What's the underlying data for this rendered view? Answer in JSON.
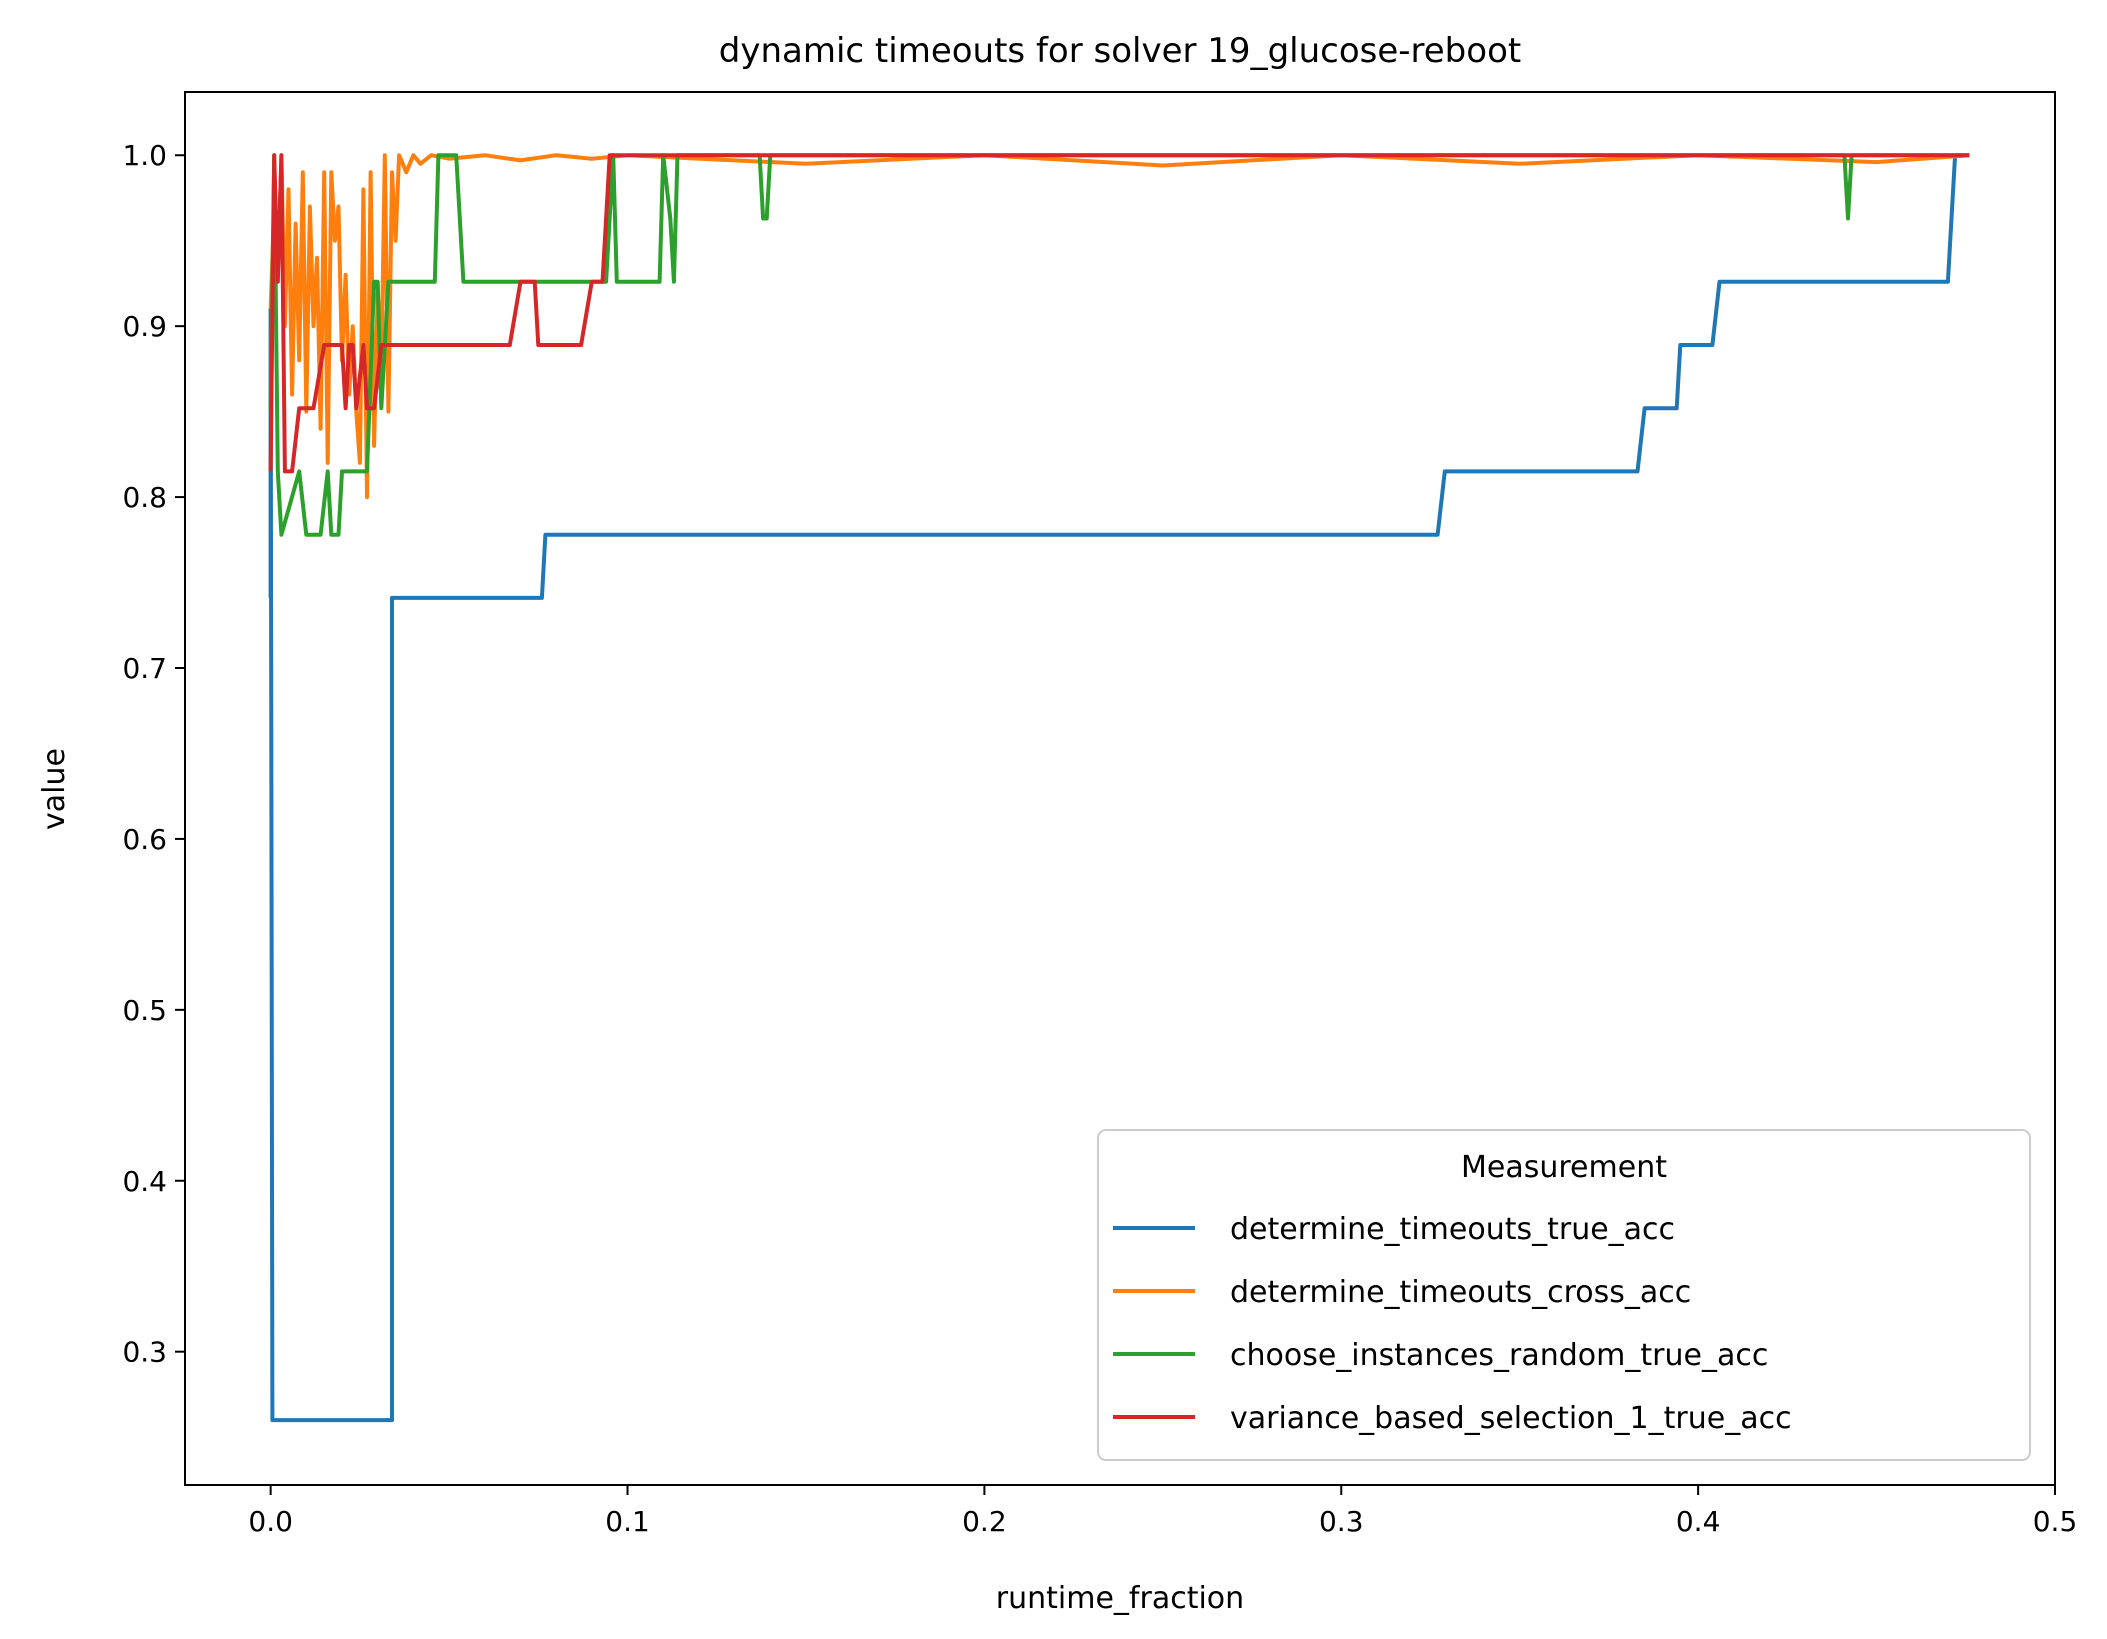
{
  "chart_data": {
    "type": "line",
    "title": "dynamic timeouts for solver 19_glucose-reboot",
    "xlabel": "runtime_fraction",
    "ylabel": "value",
    "xlim": [
      -0.024,
      0.5
    ],
    "ylim": [
      0.222,
      1.037
    ],
    "xticks": [
      0.0,
      0.1,
      0.2,
      0.3,
      0.4,
      0.5
    ],
    "xtick_labels": [
      "0.0",
      "0.1",
      "0.2",
      "0.3",
      "0.4",
      "0.5"
    ],
    "yticks": [
      0.3,
      0.4,
      0.5,
      0.6,
      0.7,
      0.8,
      0.9,
      1.0
    ],
    "ytick_labels": [
      "0.3",
      "0.4",
      "0.5",
      "0.6",
      "0.7",
      "0.8",
      "0.9",
      "1.0"
    ],
    "grid": false,
    "legend": {
      "title": "Measurement",
      "placement": "lower-right"
    },
    "series": [
      {
        "name": "determine_timeouts_true_acc",
        "color": "#1f77b4",
        "x": [
          0.0,
          0.0,
          0.0005,
          0.0005,
          0.033,
          0.034,
          0.034,
          0.076,
          0.077,
          0.327,
          0.329,
          0.383,
          0.385,
          0.394,
          0.395,
          0.404,
          0.406,
          0.47,
          0.472
        ],
        "y": [
          0.741,
          0.91,
          0.26,
          0.26,
          0.26,
          0.26,
          0.741,
          0.741,
          0.778,
          0.778,
          0.815,
          0.815,
          0.852,
          0.852,
          0.889,
          0.889,
          0.926,
          0.926,
          1.0
        ]
      },
      {
        "name": "determine_timeouts_cross_acc",
        "color": "#ff7f0e",
        "x": [
          0.0,
          0.001,
          0.002,
          0.003,
          0.004,
          0.005,
          0.006,
          0.007,
          0.008,
          0.009,
          0.01,
          0.011,
          0.012,
          0.013,
          0.014,
          0.015,
          0.016,
          0.017,
          0.018,
          0.019,
          0.02,
          0.021,
          0.022,
          0.023,
          0.024,
          0.025,
          0.026,
          0.027,
          0.028,
          0.029,
          0.03,
          0.031,
          0.032,
          0.033,
          0.034,
          0.035,
          0.036,
          0.038,
          0.04,
          0.042,
          0.045,
          0.05,
          0.06,
          0.07,
          0.08,
          0.09,
          0.1,
          0.15,
          0.2,
          0.25,
          0.3,
          0.35,
          0.4,
          0.45,
          0.476
        ],
        "y": [
          0.91,
          0.97,
          0.93,
          1.0,
          0.9,
          0.98,
          0.86,
          0.96,
          0.88,
          0.99,
          0.85,
          0.97,
          0.9,
          0.94,
          0.84,
          0.99,
          0.82,
          0.99,
          0.95,
          0.97,
          0.88,
          0.93,
          0.86,
          0.9,
          0.85,
          0.82,
          0.98,
          0.8,
          0.99,
          0.83,
          0.92,
          0.87,
          1.0,
          0.85,
          0.99,
          0.95,
          1.0,
          0.99,
          1.0,
          0.995,
          1.0,
          0.998,
          1.0,
          0.997,
          1.0,
          0.998,
          1.0,
          0.995,
          1.0,
          0.994,
          1.0,
          0.995,
          1.0,
          0.996,
          1.0
        ]
      },
      {
        "name": "choose_instances_random_true_acc",
        "color": "#2ca02c",
        "x": [
          0.0,
          0.001,
          0.002,
          0.003,
          0.008,
          0.01,
          0.011,
          0.014,
          0.016,
          0.017,
          0.018,
          0.019,
          0.02,
          0.027,
          0.029,
          0.03,
          0.031,
          0.033,
          0.034,
          0.046,
          0.047,
          0.052,
          0.054,
          0.088,
          0.094,
          0.096,
          0.097,
          0.109,
          0.11,
          0.112,
          0.113,
          0.114,
          0.115,
          0.137,
          0.138,
          0.139,
          0.14,
          0.441,
          0.442,
          0.443,
          0.476
        ],
        "y": [
          0.85,
          1.0,
          0.815,
          0.778,
          0.815,
          0.778,
          0.778,
          0.778,
          0.815,
          0.778,
          0.778,
          0.778,
          0.815,
          0.815,
          0.926,
          0.926,
          0.852,
          0.926,
          0.926,
          0.926,
          1.0,
          1.0,
          0.926,
          0.926,
          0.926,
          1.0,
          0.926,
          0.926,
          1.0,
          0.963,
          0.926,
          1.0,
          1.0,
          1.0,
          0.963,
          0.963,
          1.0,
          1.0,
          0.963,
          1.0,
          1.0
        ]
      },
      {
        "name": "variance_based_selection_1_true_acc",
        "color": "#d62728",
        "x": [
          0.0,
          0.001,
          0.002,
          0.003,
          0.004,
          0.005,
          0.006,
          0.008,
          0.01,
          0.012,
          0.015,
          0.019,
          0.02,
          0.021,
          0.022,
          0.023,
          0.024,
          0.026,
          0.027,
          0.029,
          0.031,
          0.04,
          0.05,
          0.067,
          0.07,
          0.074,
          0.075,
          0.083,
          0.087,
          0.09,
          0.093,
          0.095,
          0.1,
          0.15,
          0.2,
          0.3,
          0.4,
          0.476
        ],
        "y": [
          0.815,
          1.0,
          0.926,
          1.0,
          0.815,
          0.815,
          0.815,
          0.852,
          0.852,
          0.852,
          0.889,
          0.889,
          0.889,
          0.852,
          0.889,
          0.889,
          0.852,
          0.889,
          0.852,
          0.852,
          0.889,
          0.889,
          0.889,
          0.889,
          0.926,
          0.926,
          0.889,
          0.889,
          0.889,
          0.926,
          0.926,
          1.0,
          1.0,
          1.0,
          1.0,
          1.0,
          1.0,
          1.0
        ]
      }
    ]
  }
}
